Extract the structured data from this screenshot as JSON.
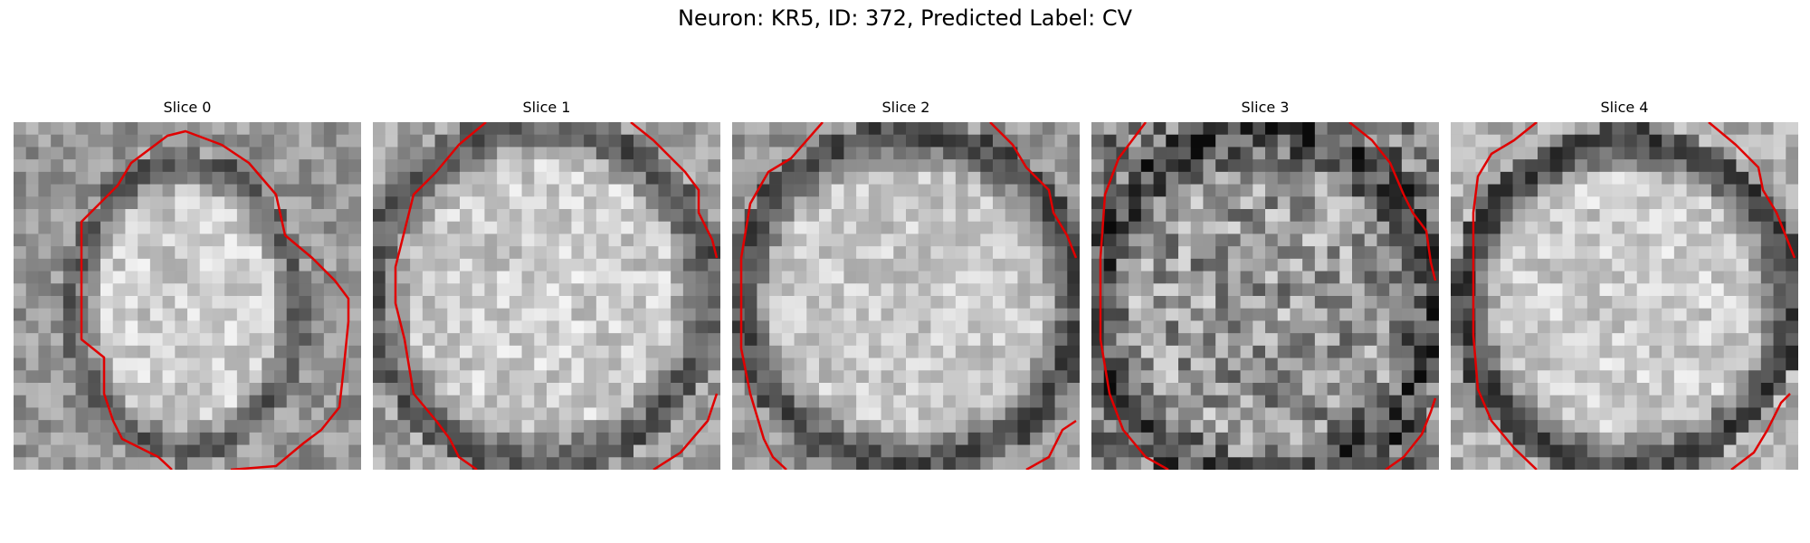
{
  "figure": {
    "title": "Neuron: KR5, ID: 372, Predicted Label: CV"
  },
  "colors": {
    "contour": "#e00000",
    "background": "#ffffff"
  },
  "panels": [
    {
      "title": "Slice 0"
    },
    {
      "title": "Slice 1"
    },
    {
      "title": "Slice 2"
    },
    {
      "title": "Slice 3"
    },
    {
      "title": "Slice 4"
    }
  ]
}
